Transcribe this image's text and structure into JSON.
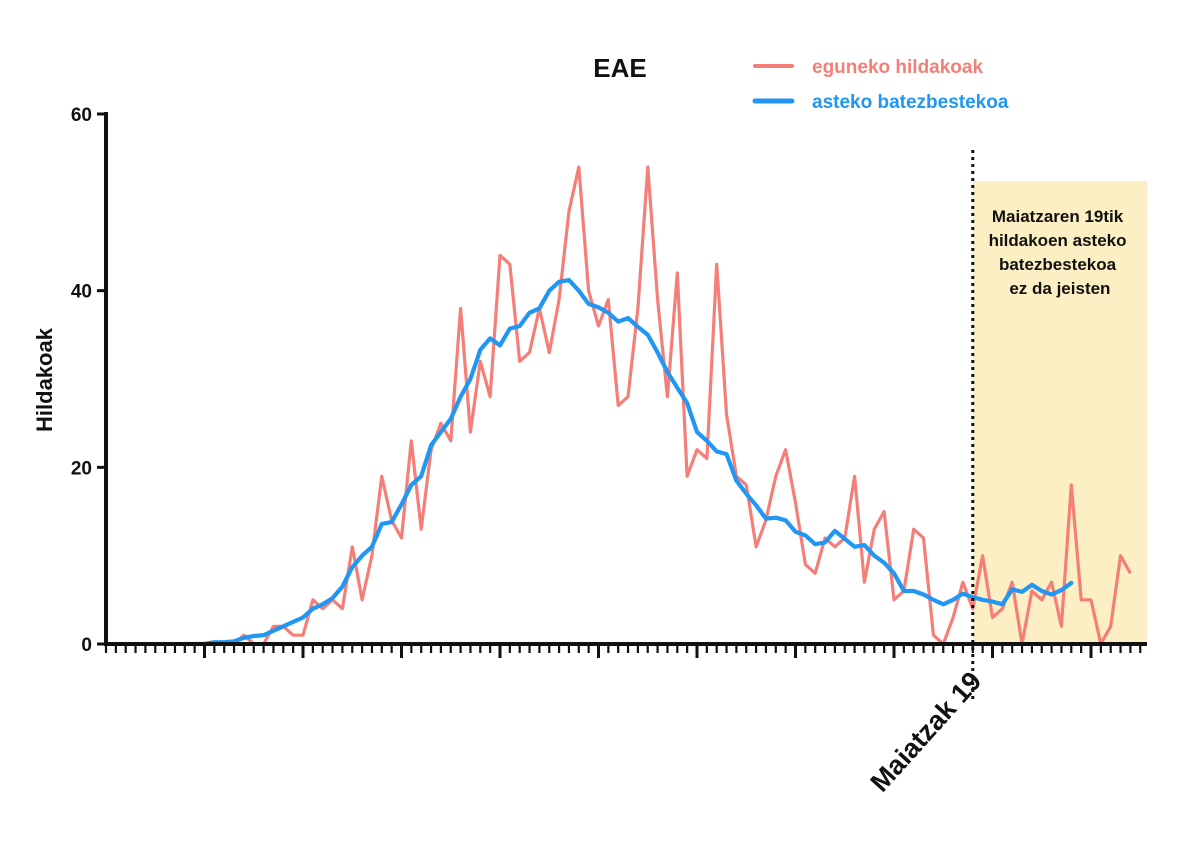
{
  "chart_data": {
    "type": "line",
    "title": "EAE",
    "ylabel": "Hildakoak",
    "xlabel": "",
    "ylim": [
      0,
      60
    ],
    "yticks": [
      0,
      20,
      40,
      60
    ],
    "grid": false,
    "legend_position": "top-right",
    "marker": {
      "label": "Maiatzak 19",
      "day_index": 88
    },
    "highlight": {
      "from_day": 88,
      "to_day": 108,
      "color": "#FCEFC3"
    },
    "annotation": [
      "Maiatzaren 19tik",
      "hildakoen asteko",
      "batezbestekoa",
      "ez da jeisten"
    ],
    "series": [
      {
        "name": "eguneko hildakoak",
        "color": "#F47F78",
        "start_day": 8,
        "values": [
          0,
          0,
          0,
          0,
          0,
          0,
          1,
          0,
          0,
          2,
          2,
          1,
          1,
          5,
          4,
          5,
          4,
          11,
          5,
          10,
          19,
          14,
          12,
          23,
          13,
          22,
          25,
          23,
          38,
          24,
          32,
          28,
          44,
          43,
          32,
          33,
          38,
          33,
          39,
          49,
          54,
          40,
          36,
          39,
          27,
          28,
          38,
          54,
          39,
          28,
          42,
          19,
          22,
          21,
          43,
          26,
          19,
          18,
          11,
          14,
          19,
          22,
          16,
          9,
          8,
          12,
          11,
          12,
          19,
          7,
          13,
          15,
          5,
          6,
          13,
          12,
          1,
          0,
          3,
          7,
          4,
          10,
          3,
          4,
          7,
          0,
          6,
          5,
          7,
          2,
          18,
          5,
          5,
          0,
          2,
          10,
          8
        ]
      },
      {
        "name": "asteko batezbestekoa",
        "color": "#2196F3",
        "start_day": 8,
        "values": [
          0,
          0,
          0,
          0.2,
          0.2,
          0.3,
          0.7,
          0.9,
          1,
          1.5,
          2,
          2.5,
          3,
          4,
          4.5,
          5.2,
          6.5,
          8.7,
          10,
          11,
          13.6,
          13.8,
          15.8,
          18,
          19,
          22.5,
          24,
          25.5,
          28,
          30,
          33.3,
          34.6,
          33.8,
          35.7,
          36,
          37.5,
          38,
          40,
          41,
          41.2,
          40,
          38.5,
          38.1,
          37.5,
          36.5,
          36.9,
          35.9,
          35,
          33,
          30.8,
          29,
          27.3,
          24,
          23,
          21.8,
          21.5,
          18.5,
          17,
          15.7,
          14.2,
          14.3,
          14,
          12.7,
          12.3,
          11.3,
          11.5,
          12.8,
          11.9,
          11,
          11.2,
          10,
          9.2,
          8,
          6,
          6,
          5.6,
          5,
          4.5,
          5,
          5.7,
          5.3,
          5,
          4.8,
          4.5,
          6.2,
          5.9,
          6.7,
          6,
          5.6,
          6.1,
          6.9
        ]
      }
    ]
  }
}
